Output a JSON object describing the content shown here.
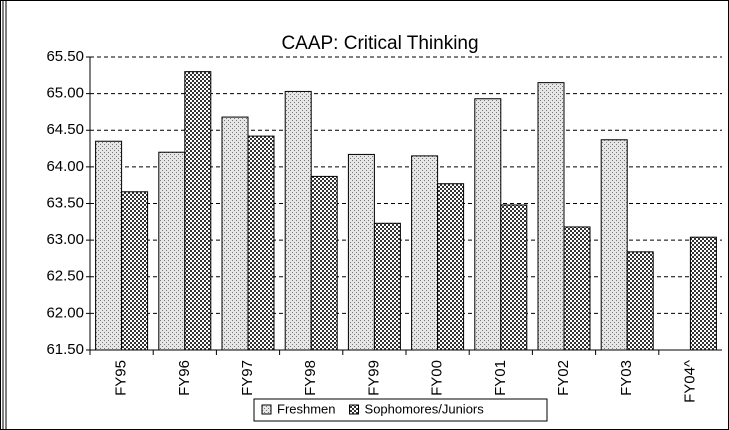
{
  "chart_data": {
    "type": "bar",
    "title": "CAAP: Critical Thinking",
    "categories": [
      "FY95",
      "FY96",
      "FY97",
      "FY98",
      "FY99",
      "FY00",
      "FY01",
      "FY02",
      "FY03",
      "FY04^"
    ],
    "series": [
      {
        "name": "Freshmen",
        "color": "#d9d9d9",
        "values": [
          64.35,
          64.2,
          64.68,
          65.03,
          64.17,
          64.15,
          64.93,
          65.15,
          64.37,
          null
        ]
      },
      {
        "name": "Sophomores/Juniors",
        "color": "#555555",
        "values": [
          63.66,
          65.3,
          64.42,
          63.87,
          63.23,
          63.77,
          63.48,
          63.18,
          62.84,
          63.04
        ]
      }
    ],
    "ylim": [
      61.5,
      65.5
    ],
    "yticks": [
      {
        "value": 61.5,
        "label": "61.50"
      },
      {
        "value": 62,
        "label": "62.00"
      },
      {
        "value": 62.5,
        "label": "62.50"
      },
      {
        "value": 63,
        "label": "63.00"
      },
      {
        "value": 63.5,
        "label": "63.50"
      },
      {
        "value": 64,
        "label": "64.00"
      },
      {
        "value": 64.5,
        "label": "64.50"
      },
      {
        "value": 65,
        "label": "65.00"
      },
      {
        "value": 65.5,
        "label": "65.50"
      }
    ],
    "grid": true,
    "legend": "bottom"
  }
}
